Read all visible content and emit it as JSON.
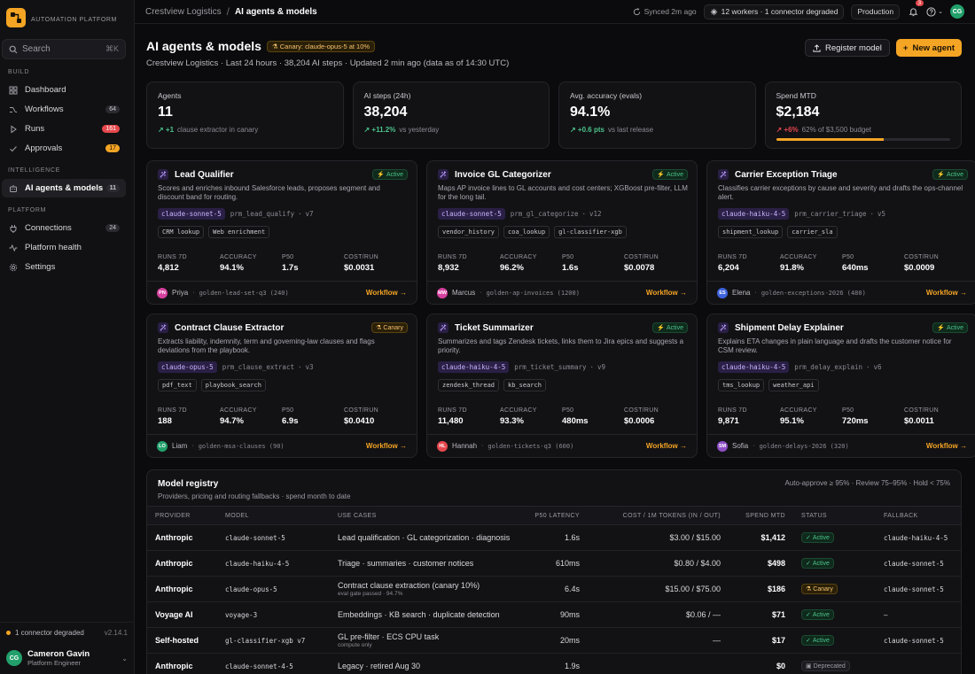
{
  "brand": {
    "name": "AUTOMATION PLATFORM"
  },
  "search": {
    "placeholder": "Search",
    "shortcut": "⌘K"
  },
  "sidebar": {
    "sections": [
      {
        "title": "BUILD",
        "items": [
          {
            "label": "Dashboard",
            "icon": "grid-icon"
          },
          {
            "label": "Workflows",
            "icon": "workflow-icon",
            "count": "64"
          },
          {
            "label": "Runs",
            "icon": "play-icon",
            "count": "161",
            "count_color": "#e5484d"
          },
          {
            "label": "Approvals",
            "icon": "check-icon",
            "count": "17",
            "count_color": "#f5a524"
          }
        ]
      },
      {
        "title": "INTELLIGENCE",
        "items": [
          {
            "label": "AI agents & models",
            "icon": "robot-icon",
            "count": "11",
            "active": true
          }
        ]
      },
      {
        "title": "PLATFORM",
        "items": [
          {
            "label": "Connections",
            "icon": "plug-icon",
            "count": "24"
          },
          {
            "label": "Platform health",
            "icon": "pulse-icon"
          },
          {
            "label": "Settings",
            "icon": "gear-icon"
          }
        ]
      }
    ],
    "footer": {
      "status": "1 connector degraded",
      "version": "v2.14.1",
      "user": {
        "initials": "CG",
        "name": "Cameron Gavin",
        "role": "Platform Engineer"
      }
    }
  },
  "topbar": {
    "breadcrumb": [
      "Crestview Logistics",
      "AI agents & models"
    ],
    "synced": "Synced 2m ago",
    "workers": "12 workers · 1 connector degraded",
    "environment": "Production",
    "notifications": "3",
    "user_initials": "CG"
  },
  "header": {
    "title": "AI agents & models",
    "canary_badge": "Canary: claude-opus-5 at 10%",
    "subtitle": "Crestview Logistics · Last 24 hours · 38,204 AI steps · Updated 2 min ago (data as of 14:30 UTC)",
    "actions": {
      "register": "Register model",
      "new_agent": "New agent"
    }
  },
  "kpis": [
    {
      "label": "Agents",
      "value": "11",
      "delta": "+1",
      "note": "clause extractor in canary"
    },
    {
      "label": "AI steps (24h)",
      "value": "38,204",
      "delta": "+11.2%",
      "note": "vs yesterday"
    },
    {
      "label": "Avg. accuracy (evals)",
      "value": "94.1%",
      "delta": "+0.6 pts",
      "note": "vs last release"
    },
    {
      "label": "Spend MTD",
      "value": "$2,184",
      "delta": "+6%",
      "note": "62% of $3,500 budget",
      "budget_fraction": 0.62
    }
  ],
  "agents": [
    {
      "name": "Lead Qualifier",
      "status": "Active",
      "desc": "Scores and enriches inbound Salesforce leads, proposes segment and discount band for routing.",
      "model": "claude-sonnet-5",
      "prompt": "prm_lead_qualify",
      "version": "v7",
      "tools": [
        "CRM lookup",
        "Web enrichment"
      ],
      "runs": "4,812",
      "accuracy": "94.1%",
      "p50": "1.7s",
      "cost": "$0.0031",
      "owner_initials": "PN",
      "owner_color": "#d6409f",
      "owner": "Priya",
      "dataset": "golden-lead-set-q3 (240)"
    },
    {
      "name": "Invoice GL Categorizer",
      "status": "Active",
      "desc": "Maps AP invoice lines to GL accounts and cost centers; XGBoost pre-filter, LLM for the long tail.",
      "model": "claude-sonnet-5",
      "prompt": "prm_gl_categorize",
      "version": "v12",
      "tools": [
        "vendor_history",
        "coa_lookup",
        "gl-classifier-xgb"
      ],
      "runs": "8,932",
      "accuracy": "96.2%",
      "p50": "1.6s",
      "cost": "$0.0078",
      "owner_initials": "MW",
      "owner_color": "#d6409f",
      "owner": "Marcus",
      "dataset": "golden-ap-invoices (1200)"
    },
    {
      "name": "Carrier Exception Triage",
      "status": "Active",
      "desc": "Classifies carrier exceptions by cause and severity and drafts the ops-channel alert.",
      "model": "claude-haiku-4-5",
      "prompt": "prm_carrier_triage",
      "version": "v5",
      "tools": [
        "shipment_lookup",
        "carrier_sla"
      ],
      "runs": "6,204",
      "accuracy": "91.8%",
      "p50": "640ms",
      "cost": "$0.0009",
      "owner_initials": "ES",
      "owner_color": "#3e63dd",
      "owner": "Elena",
      "dataset": "golden-exceptions-2026 (480)"
    },
    {
      "name": "Contract Clause Extractor",
      "status": "Canary",
      "desc": "Extracts liability, indemnity, term and governing-law clauses and flags deviations from the playbook.",
      "model": "claude-opus-5",
      "prompt": "prm_clause_extract",
      "version": "v3",
      "tools": [
        "pdf_text",
        "playbook_search"
      ],
      "runs": "188",
      "accuracy": "94.7%",
      "p50": "6.9s",
      "cost": "$0.0410",
      "owner_initials": "LO",
      "owner_color": "#22a06b",
      "owner": "Liam",
      "dataset": "golden-msa-clauses (90)"
    },
    {
      "name": "Ticket Summarizer",
      "status": "Active",
      "desc": "Summarizes and tags Zendesk tickets, links them to Jira epics and suggests a priority.",
      "model": "claude-haiku-4-5",
      "prompt": "prm_ticket_summary",
      "version": "v9",
      "tools": [
        "zendesk_thread",
        "kb_search"
      ],
      "runs": "11,480",
      "accuracy": "93.3%",
      "p50": "480ms",
      "cost": "$0.0006",
      "owner_initials": "HL",
      "owner_color": "#e5484d",
      "owner": "Hannah",
      "dataset": "golden-tickets-q3 (600)"
    },
    {
      "name": "Shipment Delay Explainer",
      "status": "Active",
      "desc": "Explains ETA changes in plain language and drafts the customer notice for CSM review.",
      "model": "claude-haiku-4-5",
      "prompt": "prm_delay_explain",
      "version": "v6",
      "tools": [
        "tms_lookup",
        "weather_api"
      ],
      "runs": "9,871",
      "accuracy": "95.1%",
      "p50": "720ms",
      "cost": "$0.0011",
      "owner_initials": "SM",
      "owner_color": "#8e4ec6",
      "owner": "Sofia",
      "dataset": "golden-delays-2026 (320)"
    }
  ],
  "agent_labels": {
    "runs": "RUNS 7D",
    "accuracy": "ACCURACY",
    "p50": "P50",
    "cost": "COST/RUN",
    "workflow_link": "Workflow →"
  },
  "registry": {
    "title": "Model registry",
    "subtitle": "Providers, pricing and routing fallbacks · spend month to date",
    "rules": "Auto-approve ≥ 95% · Review 75–95% · Hold < 75%",
    "columns": [
      "PROVIDER",
      "MODEL",
      "USE CASES",
      "P50 LATENCY",
      "COST / 1M TOKENS (IN / OUT)",
      "SPEND MTD",
      "STATUS",
      "FALLBACK"
    ],
    "rows": [
      {
        "provider": "Anthropic",
        "model": "claude-sonnet-5",
        "use_cases": "Lead qualification · GL categorization · diagnosis",
        "note": "",
        "latency": "1.6s",
        "cost": "$3.00 / $15.00",
        "spend": "$1,412",
        "status": "Active",
        "fallback": "claude-haiku-4-5"
      },
      {
        "provider": "Anthropic",
        "model": "claude-haiku-4-5",
        "use_cases": "Triage · summaries · customer notices",
        "note": "",
        "latency": "610ms",
        "cost": "$0.80 / $4.00",
        "spend": "$498",
        "status": "Active",
        "fallback": "claude-sonnet-5"
      },
      {
        "provider": "Anthropic",
        "model": "claude-opus-5",
        "use_cases": "Contract clause extraction (canary 10%)",
        "note": "eval gate passed · 94.7%",
        "latency": "6.4s",
        "cost": "$15.00 / $75.00",
        "spend": "$186",
        "status": "Canary",
        "fallback": "claude-sonnet-5"
      },
      {
        "provider": "Voyage AI",
        "model": "voyage-3",
        "use_cases": "Embeddings · KB search · duplicate detection",
        "note": "",
        "latency": "90ms",
        "cost": "$0.06 / —",
        "spend": "$71",
        "status": "Active",
        "fallback": "—"
      },
      {
        "provider": "Self-hosted",
        "model": "gl-classifier-xgb v7",
        "use_cases": "GL pre-filter · ECS CPU task",
        "note": "compute only",
        "latency": "20ms",
        "cost": "—",
        "spend": "$17",
        "status": "Active",
        "fallback": "claude-sonnet-5"
      },
      {
        "provider": "Anthropic",
        "model": "claude-sonnet-4-5",
        "use_cases": "Legacy · retired Aug 30",
        "note": "",
        "latency": "1.9s",
        "cost": "",
        "spend": "$0",
        "status": "Deprecated",
        "fallback": ""
      }
    ]
  }
}
